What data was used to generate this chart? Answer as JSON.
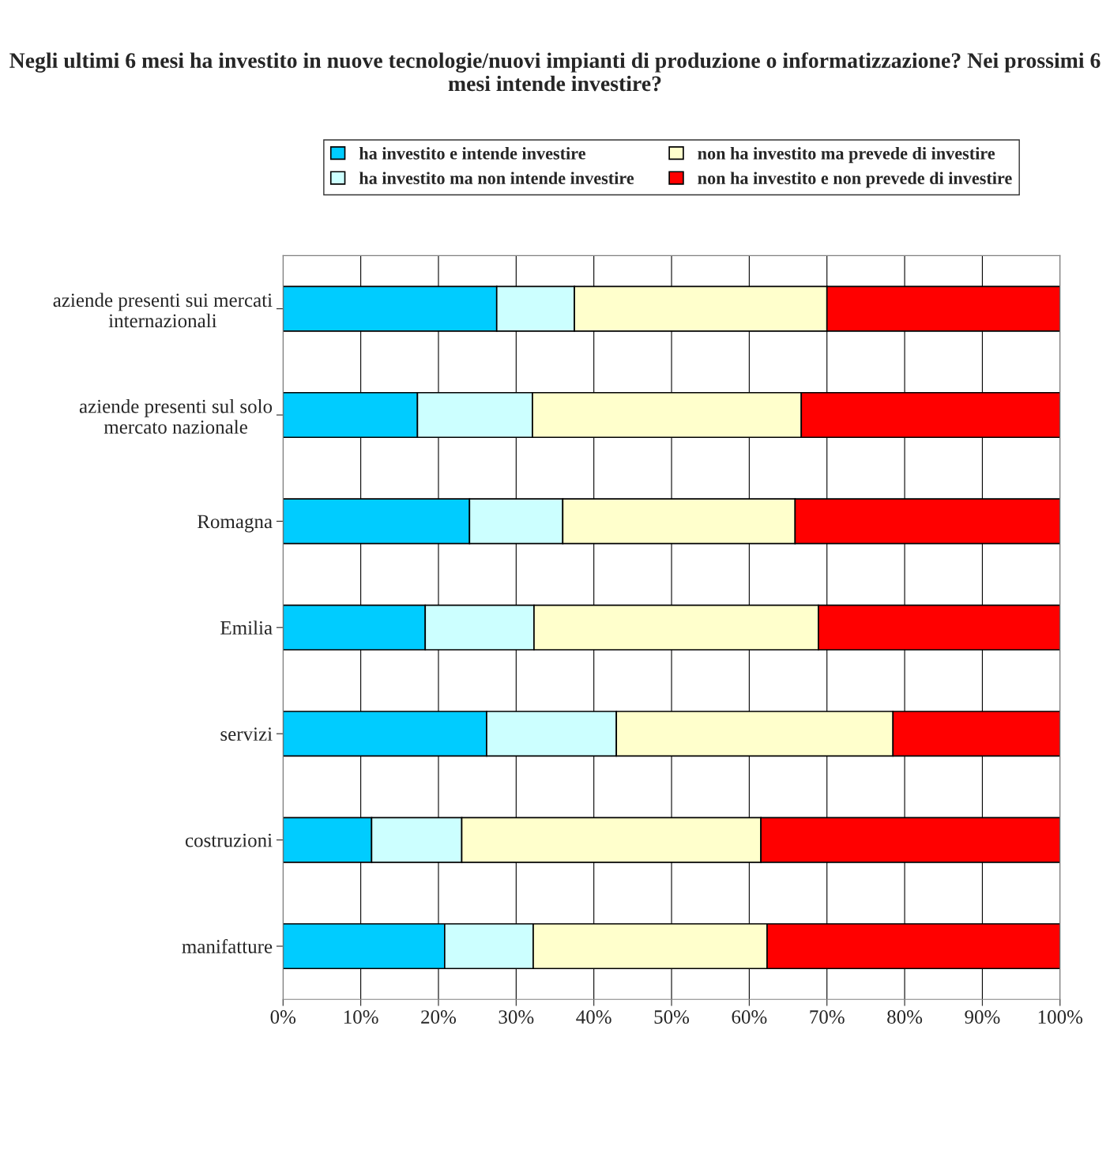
{
  "chart_data": {
    "type": "bar",
    "orientation": "horizontal",
    "stacked": true,
    "title": "Negli ultimi 6 mesi ha investito in nuove tecnologie/nuovi impianti di produzione o informatizzazione? Nei prossimi 6 mesi intende investire?",
    "categories": [
      "aziende presenti sui mercati\ninternazionali",
      "aziende presenti sul solo\nmercato nazionale",
      "Romagna",
      "Emilia",
      "servizi",
      "costruzioni",
      "manifatture"
    ],
    "series": [
      {
        "name": "ha investito e intende investire",
        "color": "#00ccff",
        "values": [
          27.5,
          17.3,
          24.0,
          18.3,
          26.2,
          11.4,
          20.8
        ]
      },
      {
        "name": "ha investito ma non intende investire",
        "color": "#ccffff",
        "values": [
          10.0,
          14.8,
          12.0,
          14.0,
          16.7,
          11.6,
          11.4
        ]
      },
      {
        "name": "non ha investito ma prevede di investire",
        "color": "#ffffcc",
        "values": [
          32.5,
          34.6,
          29.9,
          36.6,
          35.6,
          38.5,
          30.1
        ]
      },
      {
        "name": "non ha investito e non prevede di investire",
        "color": "#ff0000",
        "values": [
          30.0,
          33.3,
          34.1,
          31.1,
          21.5,
          38.5,
          37.7
        ]
      }
    ],
    "xlim": [
      0,
      100
    ],
    "xticks": [
      {
        "value": 0,
        "label": "0%"
      },
      {
        "value": 10,
        "label": "10%"
      },
      {
        "value": 20,
        "label": "20%"
      },
      {
        "value": 30,
        "label": "30%"
      },
      {
        "value": 40,
        "label": "40%"
      },
      {
        "value": 50,
        "label": "50%"
      },
      {
        "value": 60,
        "label": "60%"
      },
      {
        "value": 70,
        "label": "70%"
      },
      {
        "value": 80,
        "label": "80%"
      },
      {
        "value": 90,
        "label": "90%"
      },
      {
        "value": 100,
        "label": "100%"
      }
    ],
    "grid": "x",
    "legend": "top"
  }
}
